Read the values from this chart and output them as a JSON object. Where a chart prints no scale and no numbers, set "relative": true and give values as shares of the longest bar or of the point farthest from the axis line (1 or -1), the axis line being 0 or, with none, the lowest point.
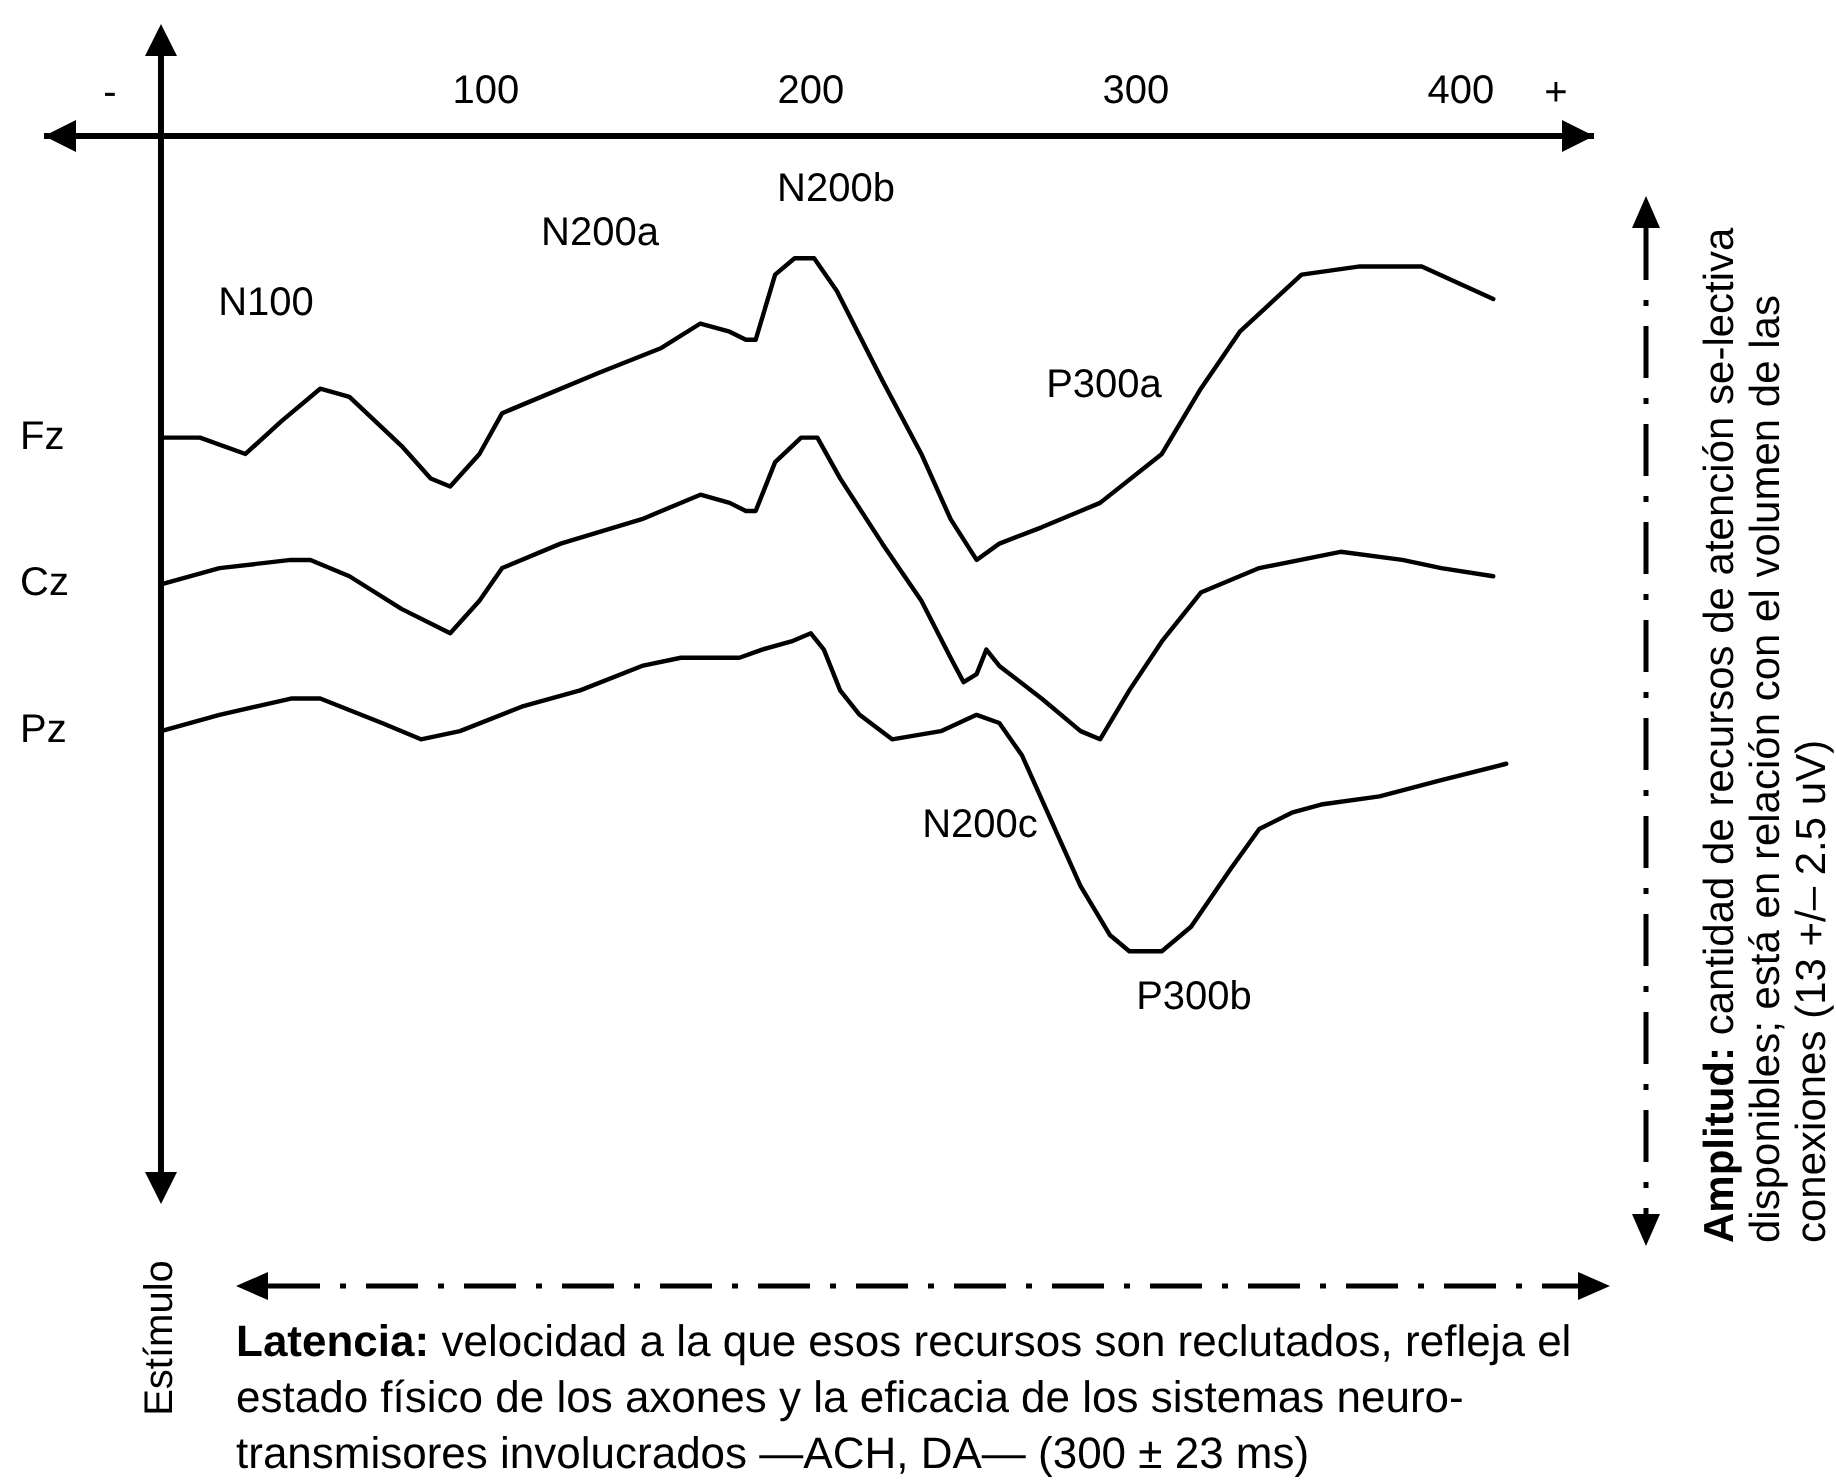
{
  "chart_data": {
    "type": "line",
    "relative": true,
    "marker": "none",
    "xlim": [
      -36,
      441
    ],
    "xticks": [
      100,
      200,
      300,
      400
    ],
    "series": [
      {
        "name": "Fz",
        "color": "#000000",
        "x": [
          0,
          12,
          26,
          37,
          49,
          58,
          74,
          83,
          89,
          98,
          105,
          117,
          135,
          154,
          166,
          175,
          180,
          183,
          189,
          195,
          201,
          208,
          222,
          234,
          243,
          251,
          258,
          271,
          289,
          308,
          320,
          332,
          351,
          369,
          388,
          410
        ],
        "values": [
          -0.37,
          -0.37,
          -0.39,
          -0.35,
          -0.31,
          -0.32,
          -0.38,
          -0.42,
          -0.43,
          -0.39,
          -0.34,
          -0.32,
          -0.29,
          -0.26,
          -0.23,
          -0.24,
          -0.25,
          -0.25,
          -0.17,
          -0.15,
          -0.15,
          -0.19,
          -0.3,
          -0.39,
          -0.47,
          -0.52,
          -0.5,
          -0.48,
          -0.45,
          -0.39,
          -0.31,
          -0.24,
          -0.17,
          -0.16,
          -0.16,
          -0.2
        ]
      },
      {
        "name": "Cz",
        "color": "#000000",
        "x": [
          0,
          18,
          40,
          46,
          58,
          74,
          89,
          98,
          105,
          123,
          148,
          166,
          175,
          180,
          183,
          189,
          197,
          202,
          209,
          222,
          234,
          243,
          247,
          251,
          254,
          258,
          271,
          283,
          289,
          298,
          308,
          320,
          338,
          363,
          382,
          394,
          410
        ],
        "values": [
          -0.55,
          -0.53,
          -0.52,
          -0.52,
          -0.54,
          -0.58,
          -0.61,
          -0.57,
          -0.53,
          -0.5,
          -0.47,
          -0.44,
          -0.45,
          -0.46,
          -0.46,
          -0.4,
          -0.37,
          -0.37,
          -0.42,
          -0.5,
          -0.57,
          -0.64,
          -0.67,
          -0.66,
          -0.63,
          -0.65,
          -0.69,
          -0.73,
          -0.74,
          -0.68,
          -0.62,
          -0.56,
          -0.53,
          -0.51,
          -0.52,
          -0.53,
          -0.54
        ]
      },
      {
        "name": "Pz",
        "color": "#000000",
        "x": [
          0,
          18,
          40,
          49,
          68,
          80,
          92,
          111,
          129,
          148,
          160,
          172,
          178,
          185,
          194,
          200,
          204,
          209,
          215,
          225,
          240,
          251,
          258,
          265,
          274,
          283,
          292,
          298,
          308,
          317,
          329,
          338,
          348,
          357,
          375,
          394,
          414
        ],
        "values": [
          -0.73,
          -0.71,
          -0.69,
          -0.69,
          -0.72,
          -0.74,
          -0.73,
          -0.7,
          -0.68,
          -0.65,
          -0.64,
          -0.64,
          -0.64,
          -0.63,
          -0.62,
          -0.61,
          -0.63,
          -0.68,
          -0.71,
          -0.74,
          -0.73,
          -0.71,
          -0.72,
          -0.76,
          -0.84,
          -0.92,
          -0.98,
          -1,
          -1,
          -0.97,
          -0.9,
          -0.85,
          -0.83,
          -0.82,
          -0.81,
          -0.79,
          -0.77
        ]
      }
    ],
    "annotations": [
      "N100",
      "N200a",
      "N200b",
      "P300a",
      "N200c",
      "P300b",
      "-",
      "+",
      "Estímulo",
      "Latencia: velocidad a la que esos recursos son reclutados, refleja el estado físico de los axones y la eficacia de los sistemas neuro-transmisores involucrados —ACH, DA— (300 ± 23 ms)",
      "Amplitud: cantidad de recursos de atención se-lectiva disponibles; está en relación con el volumen de las conexiones (13 +/– 2.5 uV)"
    ]
  }
}
